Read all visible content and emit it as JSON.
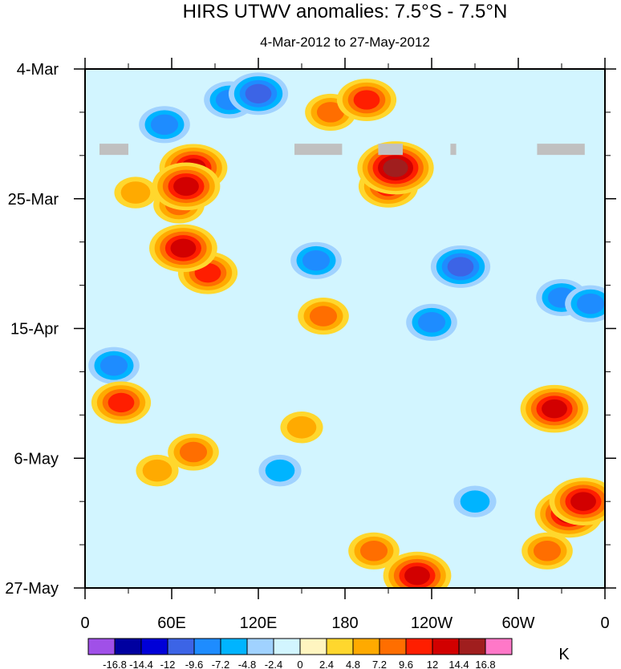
{
  "chart_data": {
    "type": "heatmap",
    "title": "HIRS UTWV anomalies: 7.5°S - 7.5°N",
    "subtitle": "4-Mar-2012 to 27-May-2012",
    "x_tick_labels": [
      "0",
      "60E",
      "120E",
      "180",
      "120W",
      "60W",
      "0"
    ],
    "x_tick_longitudes": [
      0,
      60,
      120,
      180,
      240,
      300,
      360
    ],
    "x_range": [
      0,
      360
    ],
    "y_tick_labels": [
      "4-Mar",
      "25-Mar",
      "15-Apr",
      "6-May",
      "27-May"
    ],
    "y_tick_days": [
      0,
      21,
      42,
      63,
      84
    ],
    "y_range_days": [
      0,
      84
    ],
    "colorbar_levels": [
      "-16.8",
      "-14.4",
      "-12",
      "-9.6",
      "-7.2",
      "-4.8",
      "-2.4",
      "0",
      "2.4",
      "4.8",
      "7.2",
      "9.6",
      "12",
      "14.4",
      "16.8"
    ],
    "colorbar_colors": [
      "#a050e8",
      "#0000a0",
      "#0000d8",
      "#3c64e6",
      "#1e8cff",
      "#00b4ff",
      "#a0d2ff",
      "#d2f5ff",
      "#fff5c0",
      "#ffd72d",
      "#ffaa00",
      "#ff6e00",
      "#ff1e00",
      "#d20000",
      "#a01e1e",
      "#ff78c8"
    ],
    "units_label": "K",
    "missing_data_color": "#c0c0c0",
    "features": [
      {
        "lon": 120,
        "day": 4,
        "value": -9.6
      },
      {
        "lon": 55,
        "day": 9,
        "value": -7.2
      },
      {
        "lon": 100,
        "day": 5,
        "value": -7.2
      },
      {
        "lon": 195,
        "day": 5,
        "value": 9.6
      },
      {
        "lon": 170,
        "day": 7,
        "value": 7.2
      },
      {
        "lon": 215,
        "day": 16,
        "value": 14.4
      },
      {
        "lon": 210,
        "day": 19,
        "value": 9.6
      },
      {
        "lon": 75,
        "day": 16,
        "value": 12
      },
      {
        "lon": 70,
        "day": 19,
        "value": 12
      },
      {
        "lon": 65,
        "day": 22,
        "value": 7.2
      },
      {
        "lon": 68,
        "day": 29,
        "value": 12
      },
      {
        "lon": 85,
        "day": 33,
        "value": 9.6
      },
      {
        "lon": 35,
        "day": 20,
        "value": 4.8
      },
      {
        "lon": 160,
        "day": 31,
        "value": -7.2
      },
      {
        "lon": 260,
        "day": 32,
        "value": -9.6
      },
      {
        "lon": 330,
        "day": 37,
        "value": -7.2
      },
      {
        "lon": 350,
        "day": 38,
        "value": -7.2
      },
      {
        "lon": 165,
        "day": 40,
        "value": 7.2
      },
      {
        "lon": 240,
        "day": 41,
        "value": -7.2
      },
      {
        "lon": 25,
        "day": 54,
        "value": 9.6
      },
      {
        "lon": 325,
        "day": 55,
        "value": 12
      },
      {
        "lon": 75,
        "day": 62,
        "value": 7.2
      },
      {
        "lon": 50,
        "day": 65,
        "value": 4.8
      },
      {
        "lon": 150,
        "day": 58,
        "value": 4.8
      },
      {
        "lon": 335,
        "day": 72,
        "value": 12
      },
      {
        "lon": 345,
        "day": 70,
        "value": 12
      },
      {
        "lon": 320,
        "day": 78,
        "value": 7.2
      },
      {
        "lon": 230,
        "day": 82,
        "value": 12
      },
      {
        "lon": 200,
        "day": 78,
        "value": 7.2
      },
      {
        "lon": 20,
        "day": 48,
        "value": -7.2
      },
      {
        "lon": 135,
        "day": 65,
        "value": -4.8
      },
      {
        "lon": 270,
        "day": 70,
        "value": -4.8
      }
    ],
    "missing_segments": [
      {
        "lon_start": 10,
        "lon_end": 30,
        "day": 13
      },
      {
        "lon_start": 145,
        "lon_end": 178,
        "day": 13
      },
      {
        "lon_start": 203,
        "lon_end": 220,
        "day": 13
      },
      {
        "lon_start": 253,
        "lon_end": 257,
        "day": 13
      },
      {
        "lon_start": 313,
        "lon_end": 346,
        "day": 13
      }
    ]
  }
}
